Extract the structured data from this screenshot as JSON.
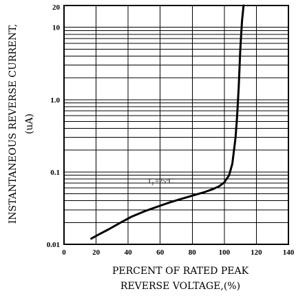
{
  "chart_data": {
    "type": "line",
    "title": "",
    "xlabel_lines": [
      "PERCENT OF RATED PEAK",
      "REVERSE VOLTAGE,(%)"
    ],
    "ylabel_lines": [
      "INSTANTANEOUS REVERSE CURRENT,",
      "(uA)"
    ],
    "xlim": [
      0,
      140
    ],
    "ylim": [
      0.01,
      20
    ],
    "y_scale": "log",
    "grid": true,
    "x_ticks": [
      0,
      20,
      40,
      60,
      80,
      100,
      120,
      140
    ],
    "x_tick_labels": [
      "0",
      "20",
      "40",
      "60",
      "80",
      "100",
      "120",
      "140"
    ],
    "y_ticks": [
      0.01,
      0.1,
      1.0,
      10,
      20
    ],
    "y_tick_labels": [
      "0.01",
      "0.1",
      "1.0",
      "10",
      "20"
    ],
    "annotation": {
      "text": "T",
      "subscript": "J",
      "suffix": " =25°C",
      "x": 52,
      "y": 0.065
    },
    "series": [
      {
        "x": [
          17,
          22,
          28,
          35,
          42,
          50,
          58,
          66,
          74,
          82,
          88,
          93,
          97,
          100,
          103,
          105,
          107,
          108,
          109,
          110,
          111,
          112
        ],
        "y": [
          0.012,
          0.0138,
          0.0162,
          0.0198,
          0.024,
          0.0285,
          0.033,
          0.038,
          0.043,
          0.0485,
          0.053,
          0.058,
          0.064,
          0.072,
          0.09,
          0.13,
          0.3,
          0.6,
          1.5,
          5,
          12,
          20
        ]
      }
    ]
  }
}
